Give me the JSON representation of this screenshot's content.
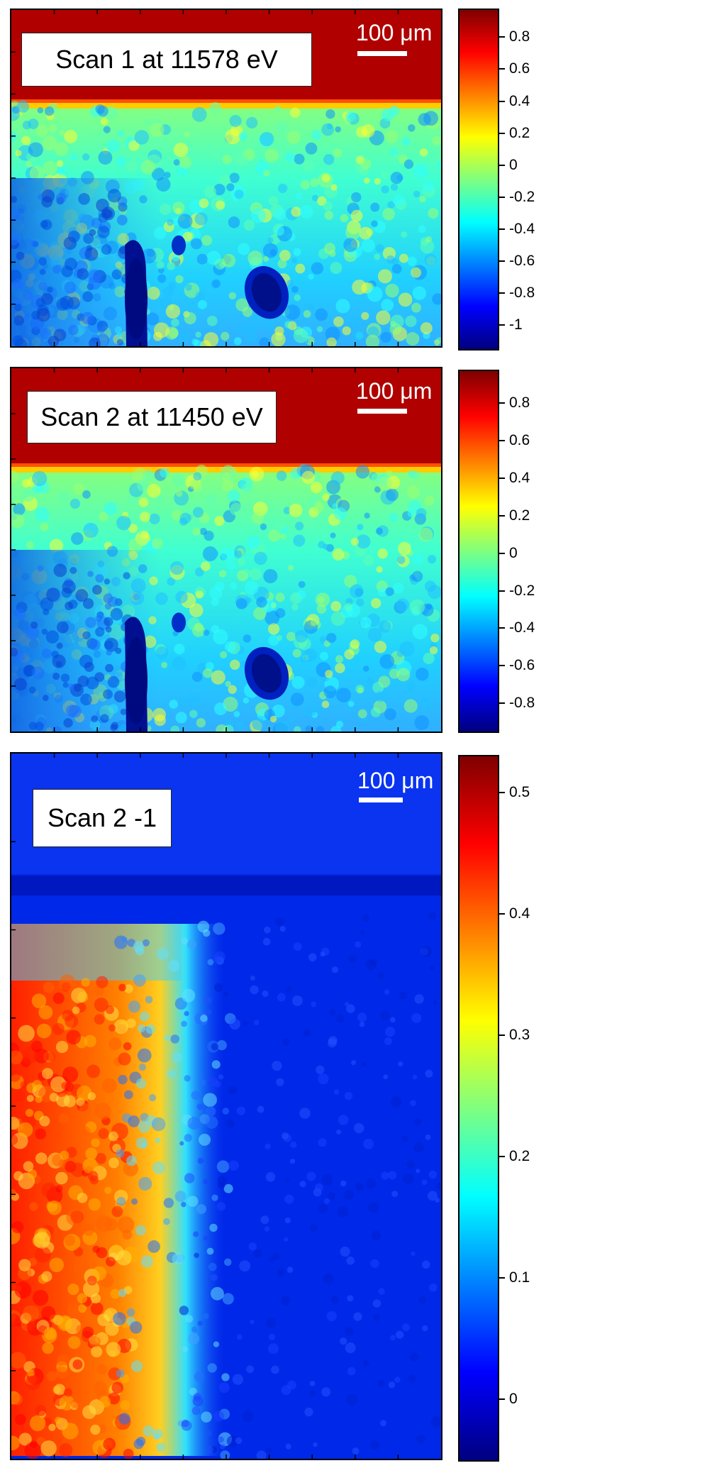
{
  "colormap": [
    "#00007f",
    "#0000ff",
    "#007fff",
    "#00ffff",
    "#7fff7f",
    "#ffff00",
    "#ff7f00",
    "#ff0000",
    "#7f0000"
  ],
  "chart_data": [
    {
      "type": "heatmap",
      "title": "Scan 1 at 11578 eV",
      "scale_bar": "100 μm",
      "colorbar": {
        "ticks": [
          "0.8",
          "0.6",
          "0.4",
          "0.2",
          "0",
          "-0.2",
          "-0.4",
          "-0.6",
          "-0.8",
          "-1"
        ],
        "tick_values": [
          0.8,
          0.6,
          0.4,
          0.2,
          0,
          -0.2,
          -0.4,
          -0.6,
          -0.8,
          -1
        ],
        "range": [
          -1.15,
          0.97
        ]
      },
      "grid": false,
      "axes_tick_labels": false
    },
    {
      "type": "heatmap",
      "title": "Scan 2 at 11450 eV",
      "scale_bar": "100 μm",
      "colorbar": {
        "ticks": [
          "0.8",
          "0.6",
          "0.4",
          "0.2",
          "0",
          "-0.2",
          "-0.4",
          "-0.6",
          "-0.8"
        ],
        "tick_values": [
          0.8,
          0.6,
          0.4,
          0.2,
          0,
          -0.2,
          -0.4,
          -0.6,
          -0.8
        ],
        "range": [
          -0.95,
          0.97
        ]
      },
      "grid": false,
      "axes_tick_labels": false
    },
    {
      "type": "heatmap",
      "title": "Scan 2 -1",
      "scale_bar": "100 μm",
      "colorbar": {
        "ticks": [
          "0.5",
          "0.4",
          "0.3",
          "0.2",
          "0.1",
          "0"
        ],
        "tick_values": [
          0.5,
          0.4,
          0.3,
          0.2,
          0.1,
          0
        ],
        "range": [
          -0.05,
          0.53
        ]
      },
      "grid": false,
      "axes_tick_labels": false
    }
  ]
}
